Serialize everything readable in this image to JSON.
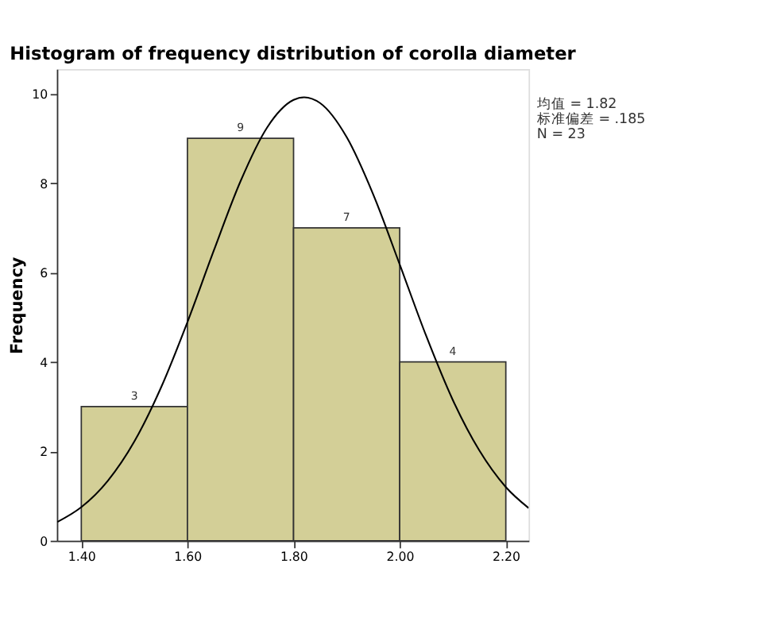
{
  "chart_data": {
    "type": "histogram",
    "title": "Histogram of frequency distribution of corolla diameter",
    "ylabel": "Frequency",
    "bins": [
      1.4,
      1.6,
      1.8,
      2.0,
      2.2
    ],
    "values": [
      3,
      9,
      7,
      4
    ],
    "color": "#d3cf97",
    "value_labels": [
      "3",
      "9",
      "7",
      "4"
    ],
    "series": [
      {
        "type": "line",
        "color": "#000000",
        "x": [
          1.355,
          1.4,
          1.45,
          1.5,
          1.55,
          1.6,
          1.65,
          1.7,
          1.75,
          1.8,
          1.82,
          1.85,
          1.9,
          1.95,
          2.0,
          2.05,
          2.1,
          2.15,
          2.2,
          2.243
        ],
        "values": [
          0.42,
          0.75,
          1.34,
          2.22,
          3.42,
          4.89,
          6.5,
          8.04,
          9.24,
          9.86,
          9.92,
          9.79,
          9.03,
          7.75,
          6.18,
          4.58,
          3.15,
          2.02,
          1.2,
          0.73
        ]
      }
    ],
    "xlim": [
      1.354,
      2.243
    ],
    "ylim": [
      0,
      10.55
    ],
    "xticks": [
      {
        "value": 1.4,
        "label": "1.40"
      },
      {
        "value": 1.6,
        "label": "1.60"
      },
      {
        "value": 1.8,
        "label": "1.80"
      },
      {
        "value": 2.0,
        "label": "2.00"
      },
      {
        "value": 2.2,
        "label": "2.20"
      }
    ],
    "yticks": [
      0,
      2,
      4,
      6,
      8,
      10
    ],
    "grid": false,
    "annotations": [
      "均值 = 1.82",
      "标准偏差 = .185",
      "N = 23"
    ]
  }
}
